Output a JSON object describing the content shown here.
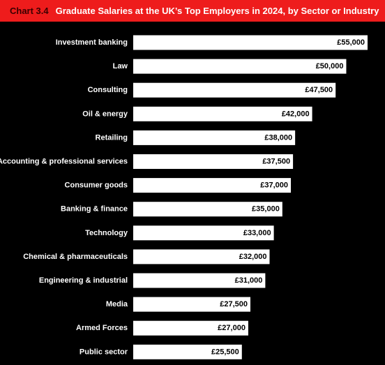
{
  "header": {
    "chart_number": "Chart 3.4",
    "title": "Graduate Salaries at the UK’s Top Employers in 2024, by Sector or Industry"
  },
  "colors": {
    "background": "#000000",
    "title_bar": "#ee1c1c",
    "chart_number": "#3a0000",
    "bar": "#ffffff",
    "bar_label": "#000000",
    "category_label": "#ffffff"
  },
  "chart_data": {
    "type": "bar",
    "orientation": "horizontal",
    "title": "Graduate Salaries at the UK’s Top Employers in 2024, by Sector or Industry",
    "xlabel": "",
    "ylabel": "",
    "grid": false,
    "legend": "none",
    "xlim": [
      0,
      55000
    ],
    "categories": [
      "Investment banking",
      "Law",
      "Consulting",
      "Oil & energy",
      "Retailing",
      "Accounting & professional services",
      "Consumer goods",
      "Banking & finance",
      "Technology",
      "Chemical & pharmaceuticals",
      "Engineering & industrial",
      "Media",
      "Armed Forces",
      "Public sector"
    ],
    "values": [
      55000,
      50000,
      47500,
      42000,
      38000,
      37500,
      37000,
      35000,
      33000,
      32000,
      31000,
      27500,
      27000,
      25500
    ],
    "data_labels": [
      "£55,000",
      "£50,000",
      "£47,500",
      "£42,000",
      "£38,000",
      "£37,500",
      "£37,000",
      "£35,000",
      "£33,000",
      "£32,000",
      "£31,000",
      "£27,500",
      "£27,000",
      "£25,500"
    ]
  }
}
